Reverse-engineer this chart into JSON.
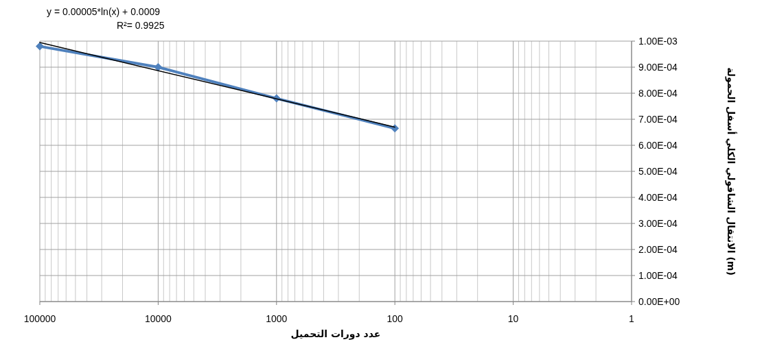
{
  "chart_data": {
    "type": "line",
    "xlabel": "عدد دورات التحميل",
    "ylabel": "الانتقال الشاقولي الكلي أسفل الحمولة (m)",
    "log": "x",
    "grid": true,
    "marker": "diamond",
    "xlim": [
      100000,
      1
    ],
    "xticks": [
      100000,
      10000,
      1000,
      100,
      10,
      1
    ],
    "ylim": [
      0,
      0.001
    ],
    "yticks": [
      {
        "value": 0,
        "label": "0.00E+00"
      },
      {
        "value": 0.0001,
        "label": "1.00E-04"
      },
      {
        "value": 0.0002,
        "label": "2.00E-04"
      },
      {
        "value": 0.0003,
        "label": "3.00E-04"
      },
      {
        "value": 0.0004,
        "label": "4.00E-04"
      },
      {
        "value": 0.0005,
        "label": "5.00E-04"
      },
      {
        "value": 0.0006,
        "label": "6.00E-04"
      },
      {
        "value": 0.0007,
        "label": "7.00E-04"
      },
      {
        "value": 0.0008,
        "label": "8.00E-04"
      },
      {
        "value": 0.0009,
        "label": "9.00E-04"
      },
      {
        "value": 0.001,
        "label": "1.00E-03"
      }
    ],
    "series": [
      {
        "color": "#4f81bd",
        "x": [
          100000,
          10000,
          1000,
          100
        ],
        "values": [
          0.00098,
          0.0009,
          0.00078,
          0.000665
        ]
      },
      {
        "color": "#000000",
        "marker": "none",
        "x": [
          100000,
          100
        ],
        "values": [
          0.000995,
          0.00067
        ]
      }
    ],
    "annotations": [
      "y = 0.00005*ln(x) + 0.0009",
      "R²=  0.9925"
    ]
  }
}
